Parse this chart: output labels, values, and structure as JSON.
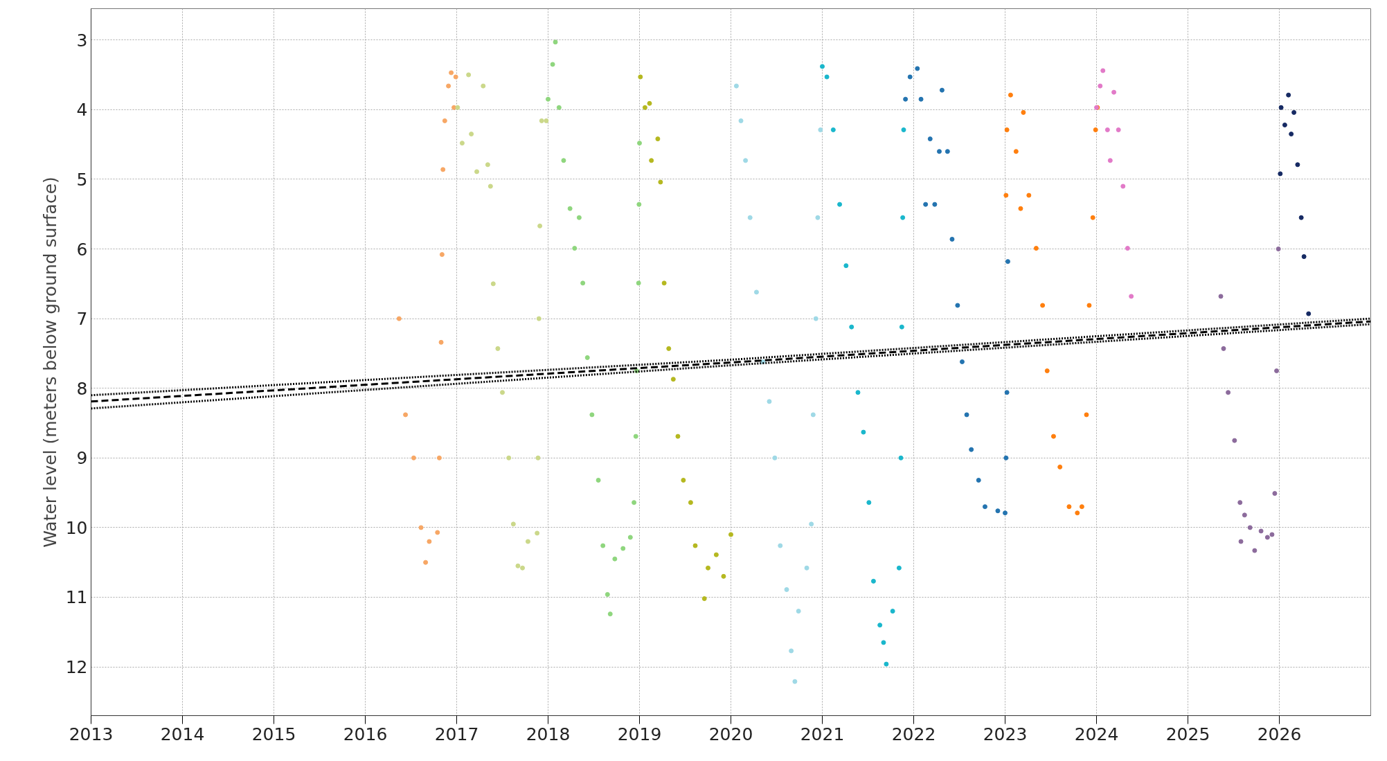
{
  "chart_data": {
    "type": "scatter",
    "ylabel": "Water level (meters below ground surface)",
    "xlim": [
      2013,
      2027
    ],
    "xticks": [
      2013,
      2014,
      2015,
      2016,
      2017,
      2018,
      2019,
      2020,
      2021,
      2022,
      2023,
      2024,
      2025,
      2026
    ],
    "ylim": [
      12.7,
      2.55
    ],
    "yticks": [
      3,
      4,
      5,
      6,
      7,
      8,
      9,
      10,
      11,
      12
    ],
    "grid": true,
    "marker": "circle",
    "series": [
      {
        "color": "#f7a765",
        "x": [
          2016.37,
          2016.44,
          2016.53,
          2016.61,
          2016.66,
          2016.7,
          2016.79,
          2016.81,
          2016.83,
          2016.84,
          2016.85,
          2016.87,
          2016.91,
          2016.94,
          2016.97,
          2016.99
        ],
        "values": [
          7.0,
          8.38,
          9.0,
          10.0,
          10.5,
          10.2,
          10.07,
          9.0,
          7.34,
          6.08,
          4.86,
          4.16,
          3.66,
          3.47,
          3.97,
          3.53
        ]
      },
      {
        "color": "#cbd88a",
        "x": [
          2017.01,
          2017.06,
          2017.13,
          2017.16,
          2017.22,
          2017.29,
          2017.34,
          2017.37,
          2017.4,
          2017.45,
          2017.5,
          2017.57,
          2017.62,
          2017.67,
          2017.72,
          2017.78,
          2017.88,
          2017.89,
          2017.9,
          2017.91,
          2017.93,
          2017.98
        ],
        "values": [
          3.97,
          4.48,
          3.5,
          4.35,
          4.89,
          3.66,
          4.79,
          5.1,
          6.5,
          7.43,
          8.06,
          9.0,
          9.95,
          10.55,
          10.58,
          10.2,
          10.08,
          9.0,
          7.0,
          5.67,
          4.16,
          4.16
        ]
      },
      {
        "color": "#8fd67e",
        "x": [
          2018.0,
          2018.05,
          2018.08,
          2018.12,
          2018.17,
          2018.24,
          2018.29,
          2018.34,
          2018.38,
          2018.43,
          2018.48,
          2018.55,
          2018.6,
          2018.65,
          2018.68,
          2018.73,
          2018.82,
          2018.9,
          2018.94,
          2018.96,
          2018.97,
          2018.99,
          2018.995,
          2019.0
        ],
        "values": [
          3.85,
          3.35,
          3.03,
          3.97,
          4.73,
          5.42,
          5.99,
          5.55,
          6.49,
          7.56,
          8.38,
          9.32,
          10.26,
          10.96,
          11.24,
          10.45,
          10.3,
          10.14,
          9.64,
          8.69,
          7.75,
          6.49,
          5.36,
          4.48
        ]
      },
      {
        "color": "#b5b820",
        "x": [
          2019.01,
          2019.06,
          2019.11,
          2019.13,
          2019.2,
          2019.23,
          2019.27,
          2019.32,
          2019.37,
          2019.42,
          2019.48,
          2019.56,
          2019.61,
          2019.71,
          2019.75,
          2019.84,
          2019.92,
          2020.0
        ],
        "values": [
          3.53,
          3.97,
          3.91,
          4.73,
          4.42,
          5.04,
          6.49,
          7.43,
          7.87,
          8.69,
          9.32,
          9.64,
          10.26,
          11.02,
          10.58,
          10.39,
          10.7,
          10.1
        ]
      },
      {
        "color": "#9fd9e6",
        "x": [
          2020.06,
          2020.11,
          2020.16,
          2020.21,
          2020.28,
          2020.35,
          2020.42,
          2020.48,
          2020.54,
          2020.61,
          2020.66,
          2020.7,
          2020.74,
          2020.83,
          2020.88,
          2020.9,
          2020.93,
          2020.95,
          2020.98
        ],
        "values": [
          3.66,
          4.16,
          4.73,
          5.55,
          6.62,
          7.62,
          8.19,
          9.0,
          10.26,
          10.89,
          11.77,
          12.21,
          11.2,
          10.58,
          9.95,
          8.38,
          7.0,
          5.55,
          4.29
        ]
      },
      {
        "color": "#1ab7cc",
        "x": [
          2021.0,
          2021.05,
          2021.12,
          2021.19,
          2021.26,
          2021.32,
          2021.39,
          2021.45,
          2021.51,
          2021.56,
          2021.63,
          2021.67,
          2021.7,
          2021.77,
          2021.84,
          2021.86,
          2021.87,
          2021.88,
          2021.89
        ],
        "values": [
          3.38,
          3.53,
          4.29,
          5.36,
          6.24,
          7.12,
          8.06,
          8.63,
          9.64,
          10.77,
          11.4,
          11.65,
          11.96,
          11.2,
          10.58,
          9.0,
          7.12,
          5.55,
          4.29
        ]
      },
      {
        "color": "#2474b0",
        "x": [
          2021.91,
          2021.96,
          2022.04,
          2022.08,
          2022.13,
          2022.18,
          2022.23,
          2022.28,
          2022.31,
          2022.37,
          2022.42,
          2022.48,
          2022.53,
          2022.58,
          2022.63,
          2022.71,
          2022.78,
          2022.92,
          2023.0,
          2023.01,
          2023.02,
          2023.03
        ],
        "values": [
          3.85,
          3.53,
          3.41,
          3.85,
          5.36,
          4.42,
          5.36,
          4.6,
          3.72,
          4.6,
          5.86,
          6.81,
          7.62,
          8.38,
          8.88,
          9.32,
          9.7,
          9.76,
          9.79,
          9.0,
          8.06,
          6.18
        ]
      },
      {
        "color": "#ff7f0e",
        "x": [
          2023.01,
          2023.02,
          2023.06,
          2023.12,
          2023.17,
          2023.2,
          2023.26,
          2023.34,
          2023.41,
          2023.46,
          2023.53,
          2023.6,
          2023.7,
          2023.79,
          2023.84,
          2023.89,
          2023.92,
          2023.96,
          2023.99,
          2024.01
        ],
        "values": [
          5.23,
          4.29,
          3.79,
          4.6,
          5.42,
          4.04,
          5.23,
          5.99,
          6.81,
          7.75,
          8.69,
          9.13,
          9.7,
          9.79,
          9.7,
          8.38,
          6.81,
          5.55,
          4.29,
          3.97
        ]
      },
      {
        "color": "#e27ac8",
        "x": [
          2024.0,
          2024.04,
          2024.07,
          2024.12,
          2024.15,
          2024.19,
          2024.24,
          2024.29,
          2024.34,
          2024.38
        ],
        "values": [
          3.97,
          3.66,
          3.44,
          4.29,
          4.73,
          3.75,
          4.29,
          5.1,
          5.99,
          6.68
        ]
      },
      {
        "color": "#8c6b9c",
        "x": [
          2025.36,
          2025.39,
          2025.44,
          2025.51,
          2025.57,
          2025.58,
          2025.62,
          2025.68,
          2025.73,
          2025.8,
          2025.87,
          2025.92,
          2025.95,
          2025.97,
          2025.99
        ],
        "values": [
          6.68,
          7.43,
          8.06,
          8.75,
          9.64,
          10.2,
          9.82,
          10.0,
          10.33,
          10.05,
          10.14,
          10.1,
          9.51,
          7.75,
          6.0
        ]
      },
      {
        "color": "#162a63",
        "x": [
          2026.01,
          2026.02,
          2026.06,
          2026.1,
          2026.13,
          2026.16,
          2026.2,
          2026.24,
          2026.27,
          2026.32
        ],
        "values": [
          4.92,
          3.97,
          4.22,
          3.79,
          4.35,
          4.04,
          4.79,
          5.55,
          6.11,
          6.93
        ]
      },
      {
        "type": "line",
        "marker": "none",
        "line_style": "dashed",
        "color": "#000000",
        "x": [
          2013,
          2020,
          2027
        ],
        "values": [
          8.19,
          7.63,
          7.04
        ]
      },
      {
        "type": "line",
        "marker": "none",
        "line_style": "dotted",
        "color": "#000000",
        "x": [
          2013,
          2020,
          2027
        ],
        "values": [
          8.1,
          7.59,
          7.0
        ]
      },
      {
        "type": "line",
        "marker": "none",
        "line_style": "dotted",
        "color": "#000000",
        "x": [
          2013,
          2020,
          2027
        ],
        "values": [
          8.29,
          7.67,
          7.08
        ]
      }
    ]
  }
}
